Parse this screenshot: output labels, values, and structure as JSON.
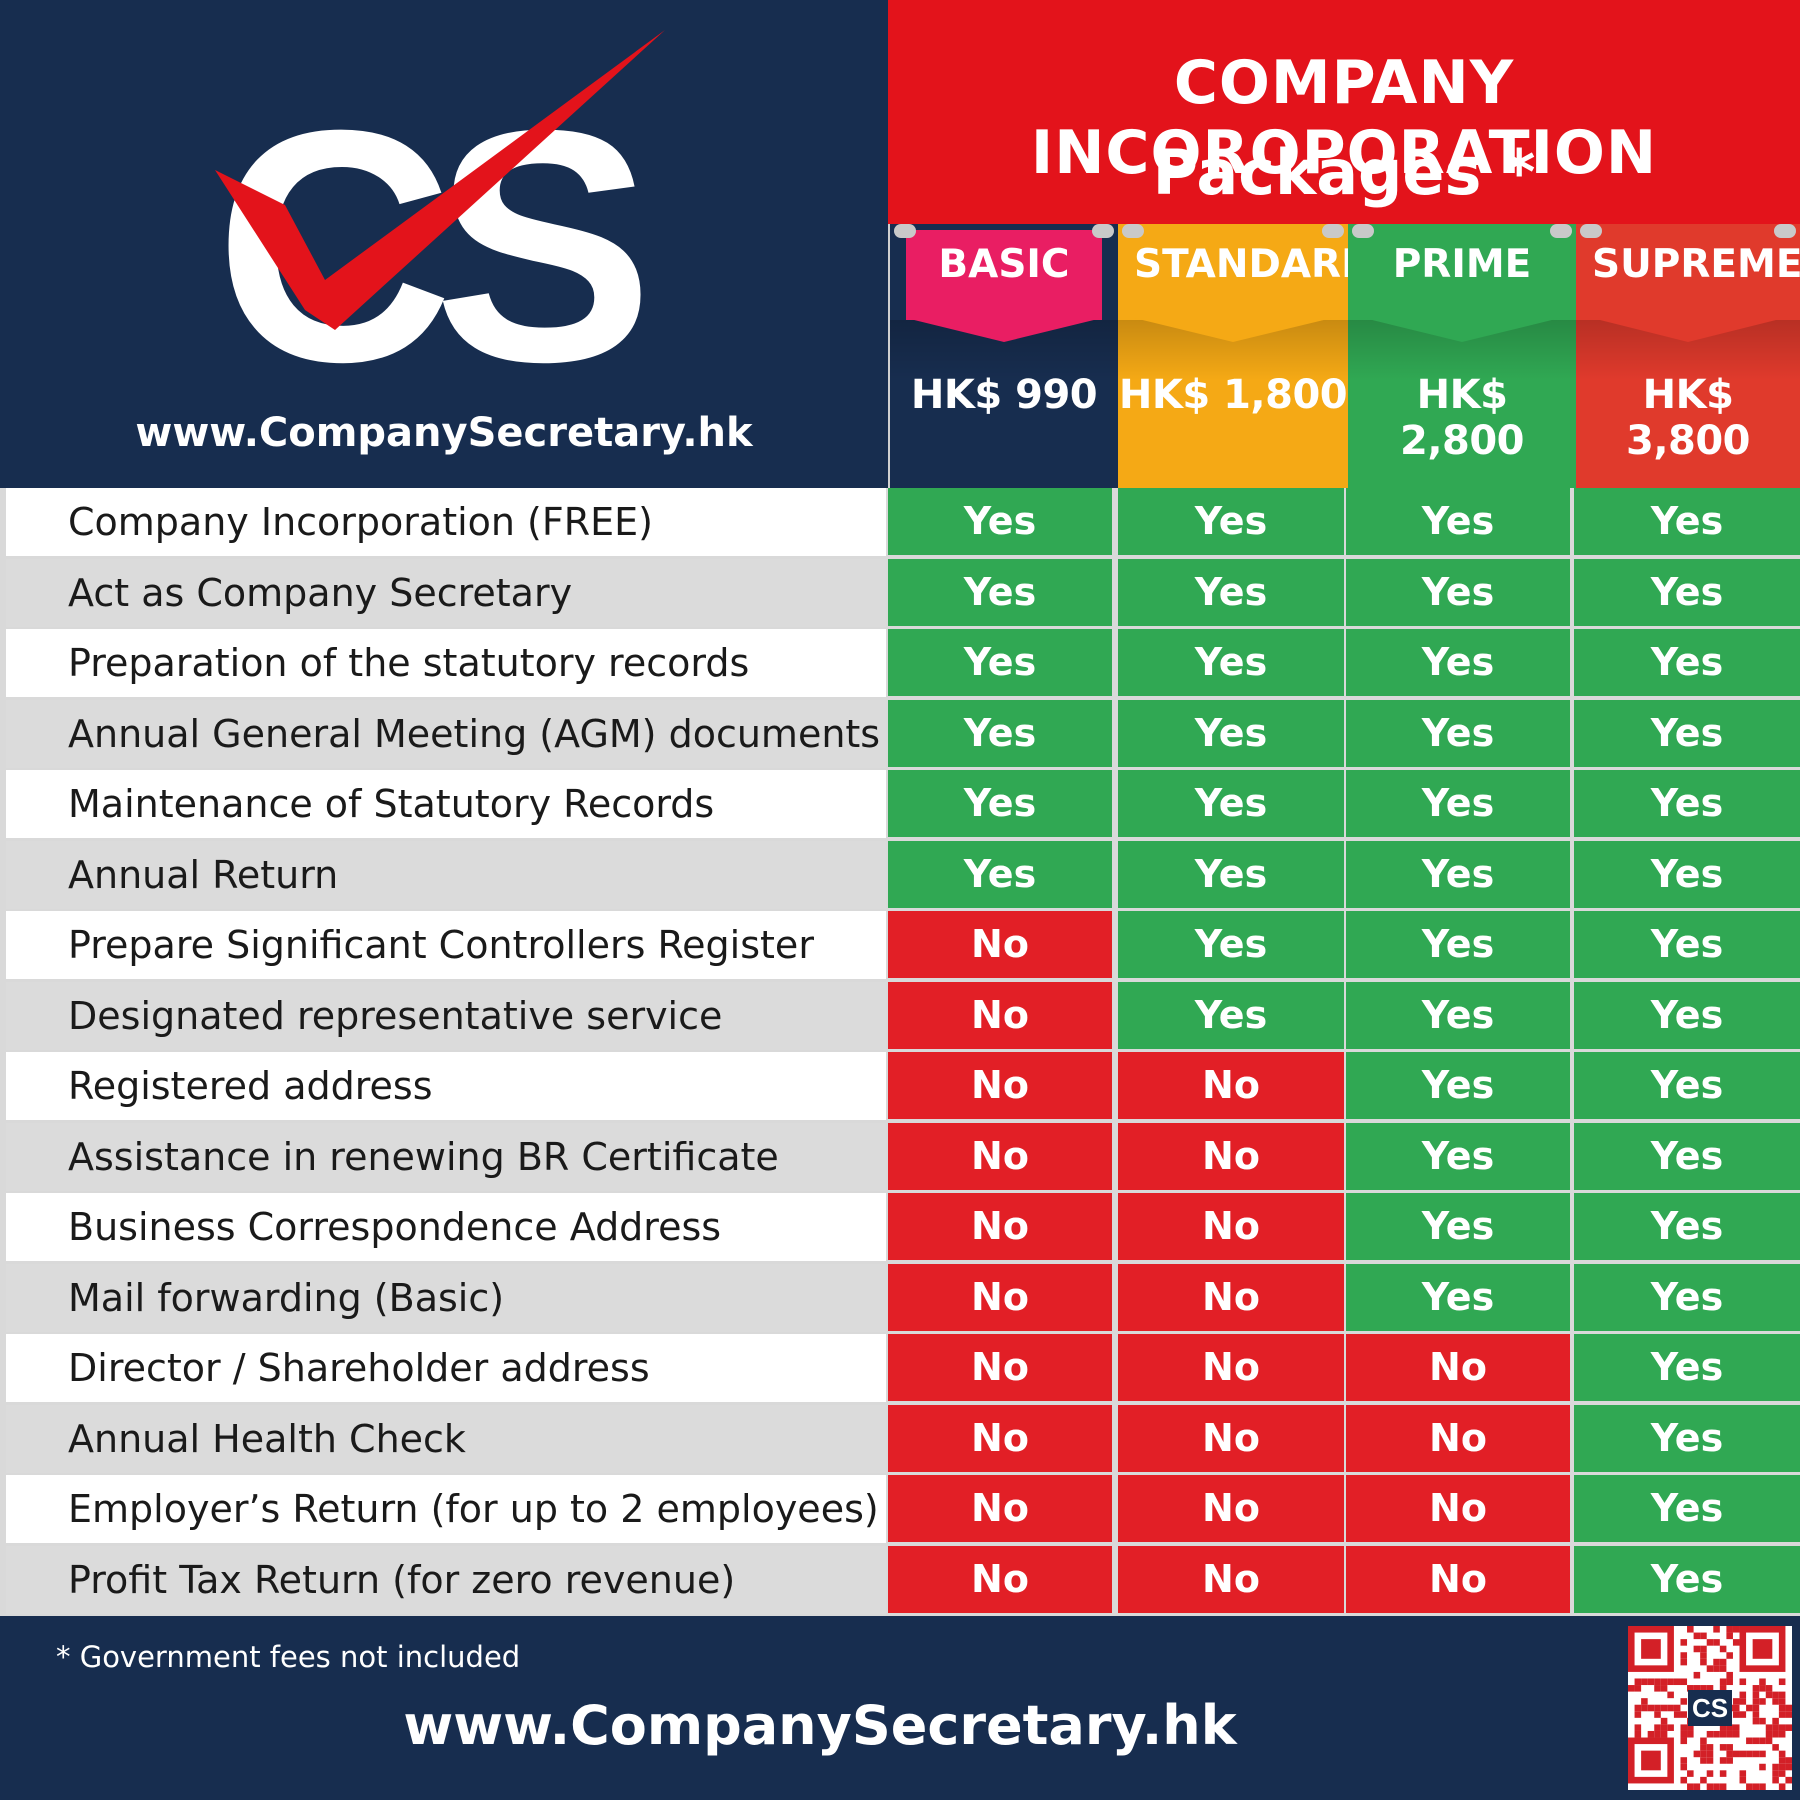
{
  "brand": {
    "logo_text": "CS",
    "url": "www.CompanySecretary.hk"
  },
  "title": {
    "line1": "COMPANY INCOROPORATION",
    "line2": "Packages *"
  },
  "packages": [
    {
      "name": "BASIC",
      "price": "HK$ 990",
      "color": "#172d4f",
      "tab_color": "#e91e63"
    },
    {
      "name": "STANDARD",
      "price": "HK$ 1,800",
      "color": "#f5a915",
      "tab_color": "#f5a915"
    },
    {
      "name": "PRIME",
      "price": "HK$ 2,800",
      "color": "#30a853",
      "tab_color": "#30a853"
    },
    {
      "name": "SUPREME",
      "price": "HK$ 3,800",
      "color": "#e03a2c",
      "tab_color": "#e03a2c"
    }
  ],
  "features": [
    {
      "label": "Company Incorporation (FREE)",
      "values": [
        "Yes",
        "Yes",
        "Yes",
        "Yes"
      ]
    },
    {
      "label": "Act as Company Secretary",
      "values": [
        "Yes",
        "Yes",
        "Yes",
        "Yes"
      ]
    },
    {
      "label": "Preparation of the statutory records",
      "values": [
        "Yes",
        "Yes",
        "Yes",
        "Yes"
      ]
    },
    {
      "label": "Annual General Meeting (AGM) documents",
      "values": [
        "Yes",
        "Yes",
        "Yes",
        "Yes"
      ]
    },
    {
      "label": "Maintenance of Statutory Records",
      "values": [
        "Yes",
        "Yes",
        "Yes",
        "Yes"
      ]
    },
    {
      "label": "Annual Return",
      "values": [
        "Yes",
        "Yes",
        "Yes",
        "Yes"
      ]
    },
    {
      "label": "Prepare Significant Controllers Register",
      "values": [
        "No",
        "Yes",
        "Yes",
        "Yes"
      ]
    },
    {
      "label": "Designated representative service",
      "values": [
        "No",
        "Yes",
        "Yes",
        "Yes"
      ]
    },
    {
      "label": "Registered address",
      "values": [
        "No",
        "No",
        "Yes",
        "Yes"
      ]
    },
    {
      "label": "Assistance in renewing BR Certificate",
      "values": [
        "No",
        "No",
        "Yes",
        "Yes"
      ]
    },
    {
      "label": "Business Correspondence Address",
      "values": [
        "No",
        "No",
        "Yes",
        "Yes"
      ]
    },
    {
      "label": "Mail forwarding (Basic)",
      "values": [
        "No",
        "No",
        "Yes",
        "Yes"
      ]
    },
    {
      "label": "Director / Shareholder address",
      "values": [
        "No",
        "No",
        "No",
        "Yes"
      ]
    },
    {
      "label": "Annual Health Check",
      "values": [
        "No",
        "No",
        "No",
        "Yes"
      ]
    },
    {
      "label": "Employer’s Return (for up to 2 employees)",
      "values": [
        "No",
        "No",
        "No",
        "Yes"
      ]
    },
    {
      "label": "Profit Tax Return (for zero revenue)",
      "values": [
        "No",
        "No",
        "No",
        "Yes"
      ]
    }
  ],
  "footer": {
    "note": "* Government fees not included",
    "url": "www.CompanySecretary.hk",
    "qr_logo_text": "CS"
  },
  "colors": {
    "navy": "#172d4f",
    "red": "#e3131b",
    "yes_green": "#30a853",
    "no_red": "#e21f26"
  }
}
